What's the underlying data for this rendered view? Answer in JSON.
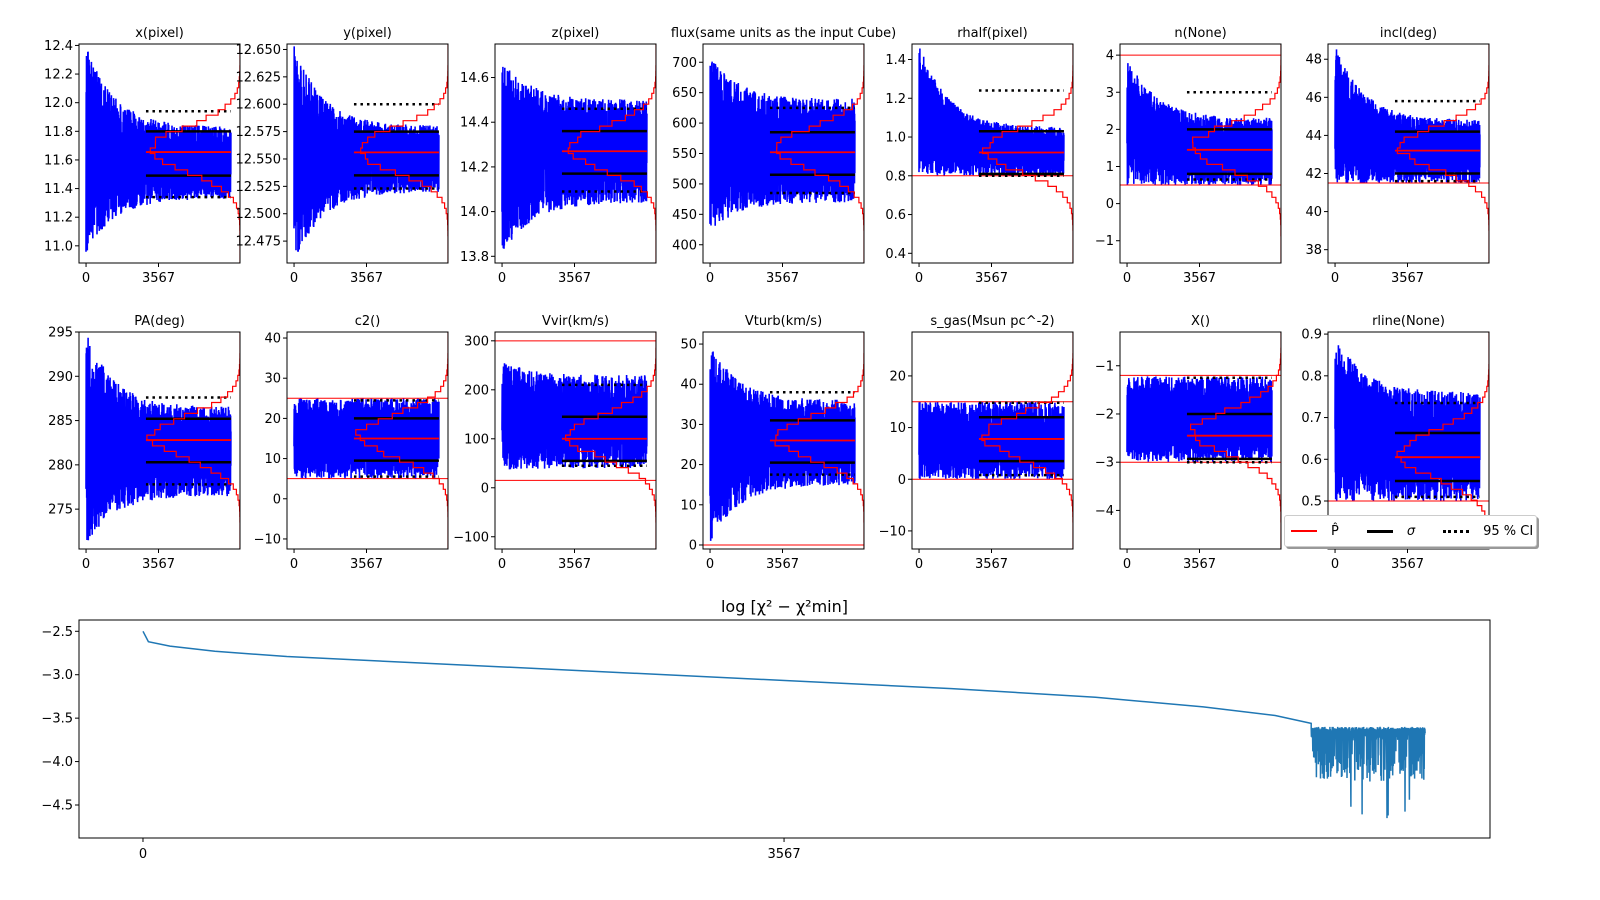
{
  "chart_data": [
    {
      "type": "line",
      "title": "x(pixel)",
      "ylim": [
        10.88,
        12.41
      ],
      "yticks": [
        "11.0",
        "11.2",
        "11.4",
        "11.6",
        "11.8",
        "12.0",
        "12.2",
        "12.4"
      ],
      "xticks": [
        "0",
        "3567"
      ],
      "median": 11.655,
      "sigma": [
        11.49,
        11.8
      ],
      "ci": [
        11.34,
        11.94
      ],
      "trace": {
        "start": [
          10.95,
          12.41
        ],
        "end": [
          11.33,
          11.83
        ]
      },
      "bounds": []
    },
    {
      "type": "line",
      "title": "y(pixel)",
      "ylim": [
        12.455,
        12.655
      ],
      "yticks": [
        "12.475",
        "12.500",
        "12.525",
        "12.550",
        "12.575",
        "12.600",
        "12.625",
        "12.650"
      ],
      "xticks": [
        "0",
        "3567"
      ],
      "median": 12.556,
      "sigma": [
        12.535,
        12.575
      ],
      "ci": [
        12.523,
        12.6
      ],
      "trace": {
        "start": [
          12.455,
          12.655
        ],
        "end": [
          12.52,
          12.58
        ]
      },
      "bounds": []
    },
    {
      "type": "line",
      "title": "z(pixel)",
      "ylim": [
        13.77,
        14.75
      ],
      "yticks": [
        "13.8",
        "14.0",
        "14.2",
        "14.4",
        "14.6"
      ],
      "xticks": [
        "0",
        "3567"
      ],
      "median": 14.27,
      "sigma": [
        14.17,
        14.36
      ],
      "ci": [
        14.09,
        14.46
      ],
      "trace": {
        "start": [
          13.8,
          14.68
        ],
        "end": [
          14.04,
          14.5
        ]
      },
      "bounds": []
    },
    {
      "type": "line",
      "title": "flux(same units as the input Cube)",
      "ylim": [
        370,
        730
      ],
      "yticks": [
        "400",
        "450",
        "500",
        "550",
        "600",
        "650",
        "700"
      ],
      "xticks": [
        "0",
        "3567"
      ],
      "median": 552,
      "sigma": [
        515,
        585
      ],
      "ci": [
        485,
        625
      ],
      "trace": {
        "start": [
          420,
          710
        ],
        "end": [
          470,
          640
        ]
      },
      "bounds": []
    },
    {
      "type": "line",
      "title": "rhalf(pixel)",
      "ylim": [
        0.35,
        1.48
      ],
      "yticks": [
        "0.4",
        "0.6",
        "0.8",
        "1.0",
        "1.2",
        "1.4"
      ],
      "xticks": [
        "0",
        "3567"
      ],
      "median": 0.92,
      "sigma": [
        0.81,
        1.03
      ],
      "ci": [
        0.8,
        1.24
      ],
      "trace": {
        "start": [
          0.8,
          1.48
        ],
        "end": [
          0.8,
          1.05
        ]
      },
      "bounds": [
        0.8
      ]
    },
    {
      "type": "line",
      "title": "n(None)",
      "ylim": [
        -1.6,
        4.3
      ],
      "yticks": [
        "−1",
        "0",
        "1",
        "2",
        "3",
        "4"
      ],
      "xticks": [
        "0",
        "3567"
      ],
      "median": 1.45,
      "sigma": [
        0.8,
        2.0
      ],
      "ci": [
        0.65,
        3.0
      ],
      "trace": {
        "start": [
          0.5,
          3.95
        ],
        "end": [
          0.5,
          2.3
        ]
      },
      "bounds": [
        0.5,
        4.0
      ]
    },
    {
      "type": "line",
      "title": "incl(deg)",
      "ylim": [
        37.3,
        48.8
      ],
      "yticks": [
        "38",
        "40",
        "42",
        "44",
        "46",
        "48"
      ],
      "xticks": [
        "0",
        "3567"
      ],
      "median": 43.2,
      "sigma": [
        42.0,
        44.2
      ],
      "ci": [
        41.6,
        45.8
      ],
      "trace": {
        "start": [
          41.5,
          48.8
        ],
        "end": [
          41.5,
          44.8
        ]
      },
      "bounds": [
        41.5
      ]
    },
    {
      "type": "line",
      "title": "PA(deg)",
      "ylim": [
        270.5,
        295
      ],
      "yticks": [
        "275",
        "280",
        "285",
        "290",
        "295"
      ],
      "xticks": [
        "0",
        "3567"
      ],
      "median": 282.8,
      "sigma": [
        280.3,
        285.2
      ],
      "ci": [
        277.8,
        287.6
      ],
      "trace": {
        "start": [
          271,
          295
        ],
        "end": [
          276.5,
          286.5
        ]
      },
      "bounds": []
    },
    {
      "type": "line",
      "title": "c2()",
      "ylim": [
        -12.5,
        41.5
      ],
      "yticks": [
        "−10",
        "0",
        "10",
        "20",
        "30",
        "40"
      ],
      "xticks": [
        "0",
        "3567"
      ],
      "median": 15,
      "sigma": [
        9.5,
        20
      ],
      "ci": [
        5.5,
        24.5
      ],
      "trace": {
        "start": [
          5,
          25
        ],
        "end": [
          5,
          25
        ]
      },
      "bounds": [
        5,
        25
      ]
    },
    {
      "type": "line",
      "title": "Vvir(km/s)",
      "ylim": [
        -125,
        318
      ],
      "yticks": [
        "−100",
        "0",
        "100",
        "200",
        "300"
      ],
      "xticks": [
        "0",
        "3567"
      ],
      "median": 100,
      "sigma": [
        55,
        145
      ],
      "ci": [
        45,
        210
      ],
      "trace": {
        "start": [
          35,
          260
        ],
        "end": [
          40,
          230
        ]
      },
      "bounds": [
        15,
        300
      ]
    },
    {
      "type": "line",
      "title": "Vturb(km/s)",
      "ylim": [
        -1,
        53
      ],
      "yticks": [
        "0",
        "10",
        "20",
        "30",
        "40",
        "50"
      ],
      "xticks": [
        "0",
        "3567"
      ],
      "median": 26,
      "sigma": [
        20.5,
        31
      ],
      "ci": [
        17.5,
        38
      ],
      "trace": {
        "start": [
          0.5,
          50
        ],
        "end": [
          15,
          36
        ]
      },
      "bounds": [
        0
      ]
    },
    {
      "type": "line",
      "title": "s_gas(Msun pc^-2)",
      "ylim": [
        -13.5,
        28.5
      ],
      "yticks": [
        "−10",
        "0",
        "10",
        "20"
      ],
      "xticks": [
        "0",
        "3567"
      ],
      "median": 7.8,
      "sigma": [
        3.5,
        12
      ],
      "ci": [
        0.8,
        14.8
      ],
      "trace": {
        "start": [
          0,
          15
        ],
        "end": [
          0,
          15
        ]
      },
      "bounds": [
        0,
        15
      ]
    },
    {
      "type": "line",
      "title": "X()",
      "ylim": [
        -4.8,
        -0.3
      ],
      "yticks": [
        "−4",
        "−3",
        "−2",
        "−1"
      ],
      "xticks": [
        "0",
        "3567"
      ],
      "median": -2.45,
      "sigma": [
        -2.93,
        -2.0
      ],
      "ci": [
        -3.0,
        -1.25
      ],
      "trace": {
        "start": [
          -3.0,
          -1.22
        ],
        "end": [
          -3.0,
          -1.22
        ]
      },
      "bounds": [
        -3.0,
        -1.2
      ]
    },
    {
      "type": "line",
      "title": "rline(None)",
      "ylim": [
        0.385,
        0.905
      ],
      "yticks": [
        "0.5",
        "0.6",
        "0.7",
        "0.8",
        "0.9"
      ],
      "xticks": [
        "0",
        "3567"
      ],
      "median": 0.605,
      "sigma": [
        0.548,
        0.663
      ],
      "ci": [
        0.51,
        0.735
      ],
      "trace": {
        "start": [
          0.5,
          0.9
        ],
        "end": [
          0.5,
          0.76
        ]
      },
      "bounds": [
        0.5
      ]
    },
    {
      "type": "line",
      "title": "log  [χ² − χ²min]",
      "ylim": [
        -4.88,
        -2.37
      ],
      "yticks": [
        "−2.5",
        "−3.0",
        "−3.5",
        "−4.0",
        "−4.5"
      ],
      "xticks": [
        "0",
        "3567"
      ],
      "xlim": [
        -356,
        7495
      ],
      "smooth": [
        [
          0,
          -2.5
        ],
        [
          30,
          -2.62
        ],
        [
          150,
          -2.67
        ],
        [
          400,
          -2.73
        ],
        [
          800,
          -2.79
        ],
        [
          1500,
          -2.86
        ],
        [
          2500,
          -2.96
        ],
        [
          3500,
          -3.06
        ],
        [
          4500,
          -3.16
        ],
        [
          5300,
          -3.26
        ],
        [
          5900,
          -3.37
        ],
        [
          6300,
          -3.47
        ],
        [
          6500,
          -3.56
        ]
      ],
      "noisy": {
        "x": [
          6500,
          7134
        ],
        "band": [
          -4.2,
          -3.6
        ],
        "min": -4.8
      }
    }
  ],
  "legend": {
    "items": [
      {
        "label": "P̂",
        "color": "#ff0000",
        "style": "solid"
      },
      {
        "label": "σ",
        "color": "#000000",
        "style": "solid"
      },
      {
        "label": "95 % CI",
        "color": "#000000",
        "style": "dotted"
      }
    ]
  },
  "trace_length": 7134,
  "colors": {
    "trace": "#0000ff",
    "median": "#ff0000",
    "hist": "#ff0000",
    "sigma": "#000000",
    "ci": "#000000",
    "chi2": "#1f77b4"
  }
}
